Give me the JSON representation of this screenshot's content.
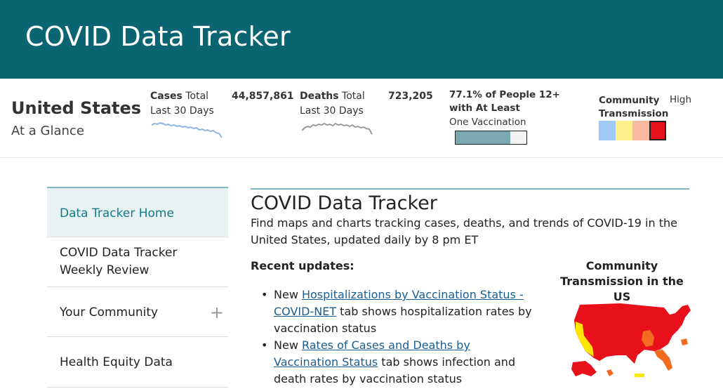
{
  "header": {
    "title": "COVID Data Tracker"
  },
  "glance": {
    "country": "United States",
    "subtitle": "At a Glance",
    "cases": {
      "label": "Cases",
      "suffix": "Total",
      "period": "Last 30 Days",
      "value": "44,857,861",
      "color": "#8fb2e0"
    },
    "deaths": {
      "label": "Deaths",
      "suffix": "Total",
      "period": "Last 30 Days",
      "value": "723,205",
      "color": "#9a9a9a"
    },
    "vaccination": {
      "title": "77.1% of People 12+ with At Least",
      "subtitle": "One Vaccination",
      "percent": 77.1,
      "fill_color": "#7aa9b2"
    },
    "community": {
      "title": "Community Transmission",
      "level": "High",
      "swatches": [
        "#9ec9f5",
        "#fff08a",
        "#f7b9a0",
        "#e8101b"
      ],
      "selected_index": 3
    }
  },
  "sidebar": {
    "items": [
      {
        "label": "Data Tracker Home"
      },
      {
        "label": "COVID Data Tracker Weekly Review"
      },
      {
        "label": "Your Community"
      },
      {
        "label": "Health Equity Data"
      }
    ]
  },
  "main": {
    "title": "COVID Data Tracker",
    "description": "Find maps and charts tracking cases, deaths, and trends of COVID-19 in the United States, updated daily by 8 pm ET",
    "recent_label": "Recent updates:",
    "updates": [
      {
        "prefix": "New ",
        "link": "Hospitalizations by Vaccination Status - COVID-NET",
        "rest": " tab shows hospitalization rates by vaccination status"
      },
      {
        "prefix": "New ",
        "link": "Rates of Cases and Deaths by Vaccination Status",
        "rest": " tab shows infection and death rates by vaccination status"
      }
    ],
    "map_title": "Community Transmission in the US",
    "map_colors": {
      "high": "#e8101b",
      "substantial": "#f26b21",
      "moderate": "#ffe600"
    }
  }
}
